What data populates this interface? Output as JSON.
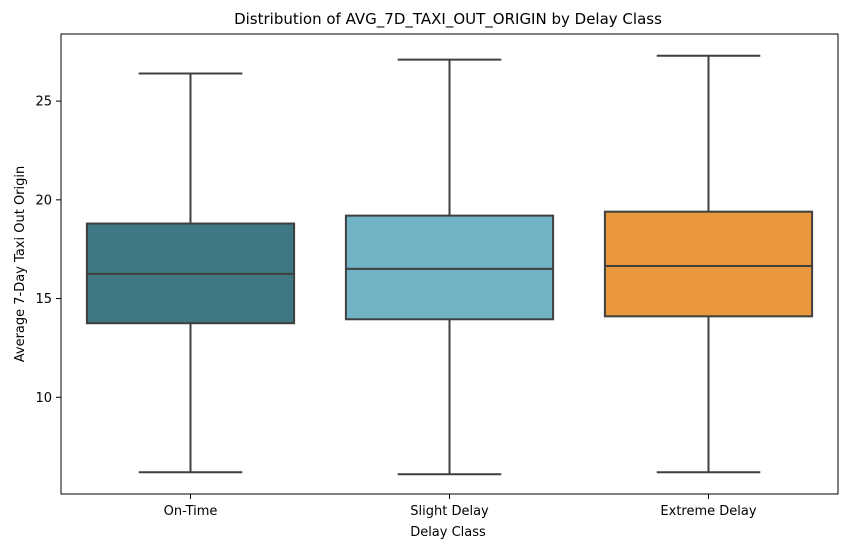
{
  "chart_data": {
    "type": "box",
    "title": "Distribution of AVG_7D_TAXI_OUT_ORIGIN by Delay Class",
    "xlabel": "Delay Class",
    "ylabel": "Average 7-Day Taxi Out Origin",
    "ylim": [
      5.1,
      28.4
    ],
    "yticks": [
      10,
      15,
      20,
      25
    ],
    "grid": false,
    "categories": [
      "On-Time",
      "Slight Delay",
      "Extreme Delay"
    ],
    "boxes": [
      {
        "category": "On-Time",
        "whisker_low": 6.2,
        "q1": 13.75,
        "median": 16.25,
        "q3": 18.8,
        "whisker_high": 26.4,
        "color": "#3f7783"
      },
      {
        "category": "Slight Delay",
        "whisker_low": 6.1,
        "q1": 13.95,
        "median": 16.5,
        "q3": 19.2,
        "whisker_high": 27.1,
        "color": "#6fb3c4"
      },
      {
        "category": "Extreme Delay",
        "whisker_low": 6.2,
        "q1": 14.1,
        "median": 16.65,
        "q3": 19.4,
        "whisker_high": 27.3,
        "color": "#ea983d"
      }
    ],
    "line_color": "#3f3f3f"
  }
}
